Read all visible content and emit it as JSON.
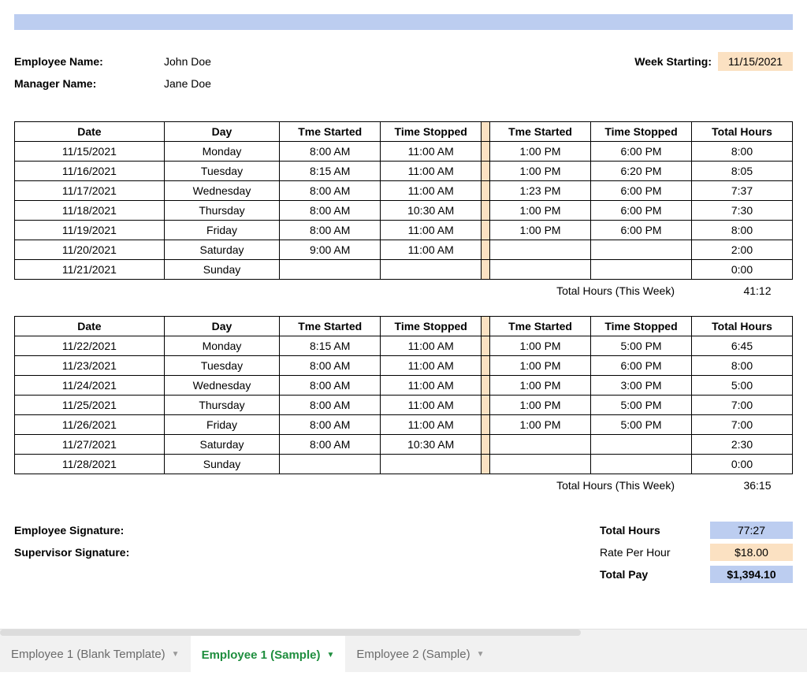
{
  "colors": {
    "header_bar": "#bccdf0",
    "peach": "#fbe1c2",
    "blue_fill": "#bccdf0",
    "border": "#000000",
    "tab_active_text": "#1e8e3e",
    "tab_inactive_text": "#6b6b6b",
    "tab_bg": "#f1f1f1"
  },
  "header": {
    "employee_label": "Employee Name:",
    "employee_value": "John Doe",
    "manager_label": "Manager Name:",
    "manager_value": "Jane Doe",
    "week_start_label": "Week Starting:",
    "week_start_value": "11/15/2021"
  },
  "table_headers": {
    "date": "Date",
    "day": "Day",
    "start1": "Tme Started",
    "stop1": "Time Stopped",
    "start2": "Tme Started",
    "stop2": "Time Stopped",
    "total": "Total Hours"
  },
  "week1": {
    "rows": [
      {
        "date": "11/15/2021",
        "day": "Monday",
        "s1": "8:00 AM",
        "e1": "11:00 AM",
        "s2": "1:00 PM",
        "e2": "6:00 PM",
        "tot": "8:00"
      },
      {
        "date": "11/16/2021",
        "day": "Tuesday",
        "s1": "8:15 AM",
        "e1": "11:00 AM",
        "s2": "1:00 PM",
        "e2": "6:20 PM",
        "tot": "8:05"
      },
      {
        "date": "11/17/2021",
        "day": "Wednesday",
        "s1": "8:00 AM",
        "e1": "11:00 AM",
        "s2": "1:23 PM",
        "e2": "6:00 PM",
        "tot": "7:37"
      },
      {
        "date": "11/18/2021",
        "day": "Thursday",
        "s1": "8:00 AM",
        "e1": "10:30 AM",
        "s2": "1:00 PM",
        "e2": "6:00 PM",
        "tot": "7:30"
      },
      {
        "date": "11/19/2021",
        "day": "Friday",
        "s1": "8:00 AM",
        "e1": "11:00 AM",
        "s2": "1:00 PM",
        "e2": "6:00 PM",
        "tot": "8:00"
      },
      {
        "date": "11/20/2021",
        "day": "Saturday",
        "s1": "9:00 AM",
        "e1": "11:00 AM",
        "s2": "",
        "e2": "",
        "tot": "2:00"
      },
      {
        "date": "11/21/2021",
        "day": "Sunday",
        "s1": "",
        "e1": "",
        "s2": "",
        "e2": "",
        "tot": "0:00"
      }
    ],
    "total_label": "Total Hours (This Week)",
    "total_value": "41:12"
  },
  "week2": {
    "rows": [
      {
        "date": "11/22/2021",
        "day": "Monday",
        "s1": "8:15 AM",
        "e1": "11:00 AM",
        "s2": "1:00 PM",
        "e2": "5:00 PM",
        "tot": "6:45"
      },
      {
        "date": "11/23/2021",
        "day": "Tuesday",
        "s1": "8:00 AM",
        "e1": "11:00 AM",
        "s2": "1:00 PM",
        "e2": "6:00 PM",
        "tot": "8:00"
      },
      {
        "date": "11/24/2021",
        "day": "Wednesday",
        "s1": "8:00 AM",
        "e1": "11:00 AM",
        "s2": "1:00 PM",
        "e2": "3:00 PM",
        "tot": "5:00"
      },
      {
        "date": "11/25/2021",
        "day": "Thursday",
        "s1": "8:00 AM",
        "e1": "11:00 AM",
        "s2": "1:00 PM",
        "e2": "5:00 PM",
        "tot": "7:00"
      },
      {
        "date": "11/26/2021",
        "day": "Friday",
        "s1": "8:00 AM",
        "e1": "11:00 AM",
        "s2": "1:00 PM",
        "e2": "5:00 PM",
        "tot": "7:00"
      },
      {
        "date": "11/27/2021",
        "day": "Saturday",
        "s1": "8:00 AM",
        "e1": "10:30 AM",
        "s2": "",
        "e2": "",
        "tot": "2:30"
      },
      {
        "date": "11/28/2021",
        "day": "Sunday",
        "s1": "",
        "e1": "",
        "s2": "",
        "e2": "",
        "tot": "0:00"
      }
    ],
    "total_label": "Total Hours (This Week)",
    "total_value": "36:15"
  },
  "signatures": {
    "employee_label": "Employee Signature:",
    "supervisor_label": "Supervisor Signature:"
  },
  "summary": {
    "total_hours_label": "Total Hours",
    "total_hours_value": "77:27",
    "rate_label": "Rate Per Hour",
    "rate_value": "$18.00",
    "pay_label": "Total Pay",
    "pay_value": "$1,394.10"
  },
  "tabs": {
    "items": [
      {
        "label": "Employee 1 (Blank Template)",
        "active": false
      },
      {
        "label": "Employee 1 (Sample)",
        "active": true
      },
      {
        "label": "Employee 2 (Sample)",
        "active": false
      }
    ]
  }
}
